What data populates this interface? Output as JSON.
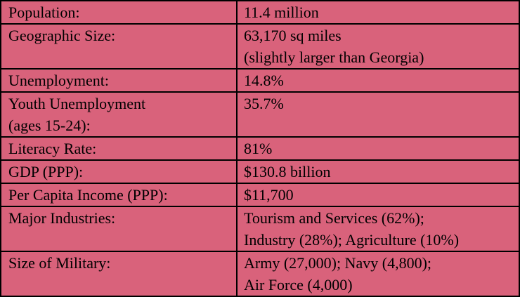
{
  "table": {
    "background": "#d9627b",
    "border_color": "#000000",
    "rows": [
      {
        "label": [
          "Population:"
        ],
        "value": [
          "11.4 million"
        ]
      },
      {
        "label": [
          "Geographic Size:"
        ],
        "value": [
          "63,170 sq miles",
          "(slightly larger than Georgia)"
        ]
      },
      {
        "label": [
          "Unemployment:"
        ],
        "value": [
          "14.8%"
        ]
      },
      {
        "label": [
          "Youth Unemployment",
          "(ages 15-24):"
        ],
        "value": [
          "35.7%"
        ]
      },
      {
        "label": [
          "Literacy Rate:"
        ],
        "value": [
          "81%"
        ]
      },
      {
        "label": [
          "GDP (PPP):"
        ],
        "value": [
          "$130.8 billion"
        ]
      },
      {
        "label": [
          "Per Capita Income (PPP):"
        ],
        "value": [
          "$11,700"
        ]
      },
      {
        "label": [
          "Major Industries:"
        ],
        "value": [
          "Tourism and Services (62%);",
          "Industry (28%); Agriculture (10%)"
        ]
      },
      {
        "label": [
          "Size of Military:"
        ],
        "value": [
          "Army (27,000); Navy (4,800);",
          "Air Force (4,000)"
        ]
      }
    ]
  }
}
